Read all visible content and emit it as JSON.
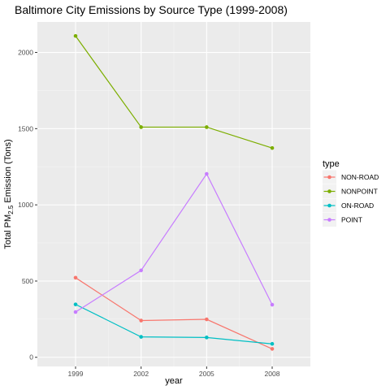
{
  "chart_data": {
    "type": "line",
    "title": "Baltimore City Emissions by Source Type (1999-2008)",
    "xlabel": "year",
    "ylabel_prefix": "Total PM",
    "ylabel_sub": "2.5",
    "ylabel_suffix": " Emission (Tons)",
    "x": [
      1999,
      2002,
      2005,
      2008
    ],
    "x_tick_labels": [
      "1999",
      "2002",
      "2005",
      "2008"
    ],
    "y_ticks": [
      0,
      500,
      1000,
      1500,
      2000
    ],
    "y_tick_labels": [
      "0",
      "500",
      "1000",
      "1500",
      "2000"
    ],
    "ylim": [
      -60,
      2200
    ],
    "grid": true,
    "legend_title": "type",
    "legend_position": "right",
    "series": [
      {
        "name": "NON-ROAD",
        "color": "#f8766d",
        "values": [
          522,
          241,
          249,
          55
        ]
      },
      {
        "name": "NONPOINT",
        "color": "#7cae00",
        "values": [
          2108,
          1510,
          1510,
          1373
        ]
      },
      {
        "name": "ON-ROAD",
        "color": "#00bfc4",
        "values": [
          347,
          134,
          130,
          88
        ]
      },
      {
        "name": "POINT",
        "color": "#c77cff",
        "values": [
          297,
          570,
          1203,
          345
        ]
      }
    ]
  }
}
